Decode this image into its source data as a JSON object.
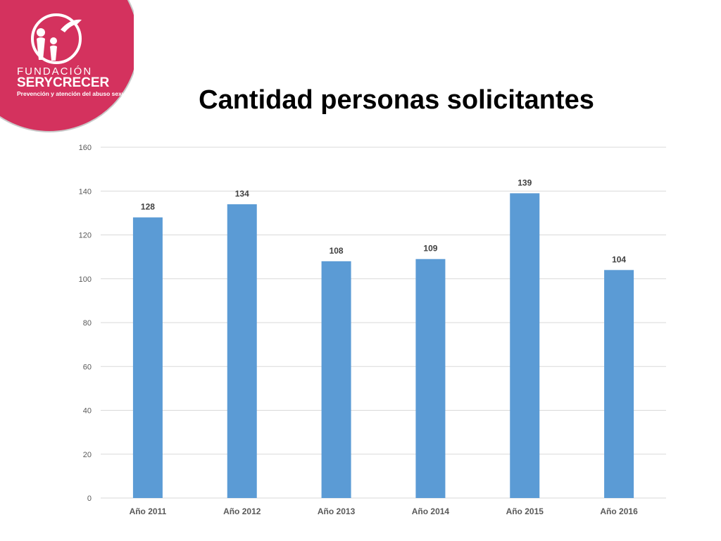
{
  "organization": {
    "name_line1": "FUNDACIÓN",
    "name_line2": "SERYCRECER",
    "tagline": "Prevención y atención del abuso sexual"
  },
  "colors": {
    "brand_pink": "#D4325E",
    "bar": "#5B9BD5",
    "grid": "#D9D9D9",
    "tick_text": "#595959",
    "label_text": "#404040"
  },
  "chart_data": {
    "type": "bar",
    "title": "Cantidad personas solicitantes",
    "categories": [
      "Año 2011",
      "Año 2012",
      "Año 2013",
      "Año 2014",
      "Año 2015",
      "Año 2016"
    ],
    "values": [
      128,
      134,
      108,
      109,
      139,
      104
    ],
    "ylim": [
      0,
      160
    ],
    "yticks": [
      0,
      20,
      40,
      60,
      80,
      100,
      120,
      140,
      160
    ],
    "grid": true,
    "data_labels": true,
    "legend": "none"
  }
}
